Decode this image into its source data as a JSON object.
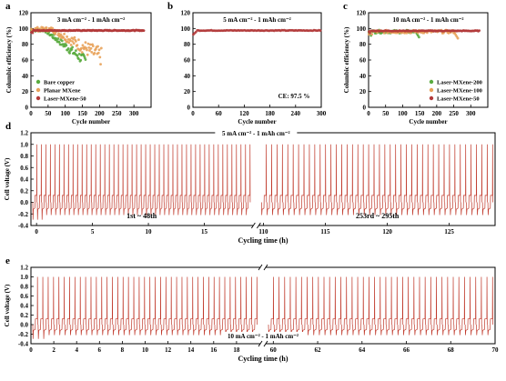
{
  "chart_data": [
    {
      "panel": "a",
      "type": "scatter",
      "annotation": "3 mA cm⁻² - 1 mAh cm⁻²",
      "xlabel": "Cycle number",
      "ylabel": "Columbic efficiency (%)",
      "xlim": [
        0,
        350
      ],
      "ylim": [
        0,
        120
      ],
      "xticks": [
        0,
        50,
        100,
        150,
        200,
        250,
        300
      ],
      "yticks": [
        0,
        20,
        40,
        60,
        80,
        100,
        120
      ],
      "legend_position": "bottom-left",
      "series": [
        {
          "name": "Bare copper",
          "color": "#5aab3f",
          "x_range": [
            1,
            160
          ],
          "values_desc": [
            98,
            100,
            99,
            97,
            95,
            92,
            88,
            85,
            80,
            76,
            70,
            65,
            60,
            55,
            50
          ],
          "baseline": 88,
          "spread": 14
        },
        {
          "name": "Planar MXene",
          "color": "#e8a25a",
          "x_range": [
            1,
            205
          ],
          "baseline": 90,
          "spread": 16
        },
        {
          "name": "Laser-MXene-50",
          "color": "#b33a3a",
          "x_range": [
            1,
            330
          ],
          "baseline": 97.5,
          "spread": 1
        }
      ]
    },
    {
      "panel": "b",
      "type": "scatter",
      "annotation": "5 mA cm⁻² - 1 mAh cm⁻²",
      "note": "CE: 97.5 %",
      "xlabel": "Cycle number",
      "ylabel": "",
      "xlim": [
        0,
        300
      ],
      "ylim": [
        0,
        120
      ],
      "xticks": [
        0,
        60,
        120,
        180,
        240,
        300
      ],
      "yticks": [
        0,
        20,
        40,
        60,
        80,
        100,
        120
      ],
      "series": [
        {
          "name": "",
          "color": "#b33a3a",
          "x_range": [
            1,
            298
          ],
          "baseline": 97.5,
          "spread": 0.8
        }
      ]
    },
    {
      "panel": "c",
      "type": "scatter",
      "annotation": "10 mA cm⁻² - 1 mAh cm⁻²",
      "xlabel": "Cycle number",
      "ylabel": "Columbic efficiency (%)",
      "xlim": [
        0,
        350
      ],
      "ylim": [
        0,
        120
      ],
      "xticks": [
        0,
        50,
        100,
        150,
        200,
        250,
        300
      ],
      "yticks": [
        0,
        20,
        40,
        60,
        80,
        100,
        120
      ],
      "legend_position": "bottom-right",
      "series": [
        {
          "name": "Laser-MXene-200",
          "color": "#5aab3f",
          "x_range": [
            1,
            150
          ],
          "baseline": 96,
          "spread": 2
        },
        {
          "name": "Laser-MXene-100",
          "color": "#e8a25a",
          "x_range": [
            1,
            262
          ],
          "baseline": 96,
          "spread": 2
        },
        {
          "name": "Laser-MXene-50",
          "color": "#b33a3a",
          "x_range": [
            1,
            325
          ],
          "baseline": 97,
          "spread": 1
        }
      ]
    },
    {
      "panel": "d",
      "type": "line",
      "annotation": "5 mA cm⁻² - 1 mAh cm⁻²",
      "xlabel": "Cycling time (h)",
      "ylabel": "Cell voltage (V)",
      "ylim": [
        -0.4,
        1.2
      ],
      "yticks": [
        -0.4,
        -0.2,
        0.0,
        0.2,
        0.4,
        0.6,
        0.8,
        1.0,
        1.2
      ],
      "segments": [
        {
          "label": "1st ~ 48th",
          "xlim": [
            -0.5,
            19.3
          ],
          "xticks": [
            0,
            5,
            10,
            15
          ],
          "cycles": 48
        },
        {
          "label": "253rd ~ 295th",
          "xlim": [
            109.7,
            128.7
          ],
          "xticks": [
            110,
            115,
            120,
            125
          ],
          "cycles": 43
        }
      ],
      "peak_voltage": 1.0,
      "plateau_voltage": 0.12,
      "trough_voltage": -0.22,
      "color": "#c0392b"
    },
    {
      "panel": "e",
      "type": "line",
      "annotation": "10 mA cm⁻² - 1 mAh cm⁻²",
      "xlabel": "Cycling time (h)",
      "ylabel": "Cell voltage (V)",
      "ylim": [
        -0.4,
        1.2
      ],
      "yticks": [
        -0.4,
        -0.2,
        0.0,
        0.2,
        0.4,
        0.6,
        0.8,
        1.0,
        1.2
      ],
      "segments": [
        {
          "label": "",
          "xlim": [
            0,
            20
          ],
          "xticks": [
            0,
            2,
            4,
            6,
            8,
            10,
            12,
            14,
            16,
            18
          ],
          "cycles": 42
        },
        {
          "label": "",
          "xlim": [
            59.7,
            70
          ],
          "xticks": [
            60,
            62,
            64,
            66,
            68,
            70
          ],
          "cycles": 40
        }
      ],
      "peak_voltage": 1.0,
      "plateau_voltage": 0.12,
      "trough_voltage": -0.22,
      "color": "#c0392b"
    }
  ],
  "panel_letters": [
    "a",
    "b",
    "c",
    "d",
    "e"
  ]
}
